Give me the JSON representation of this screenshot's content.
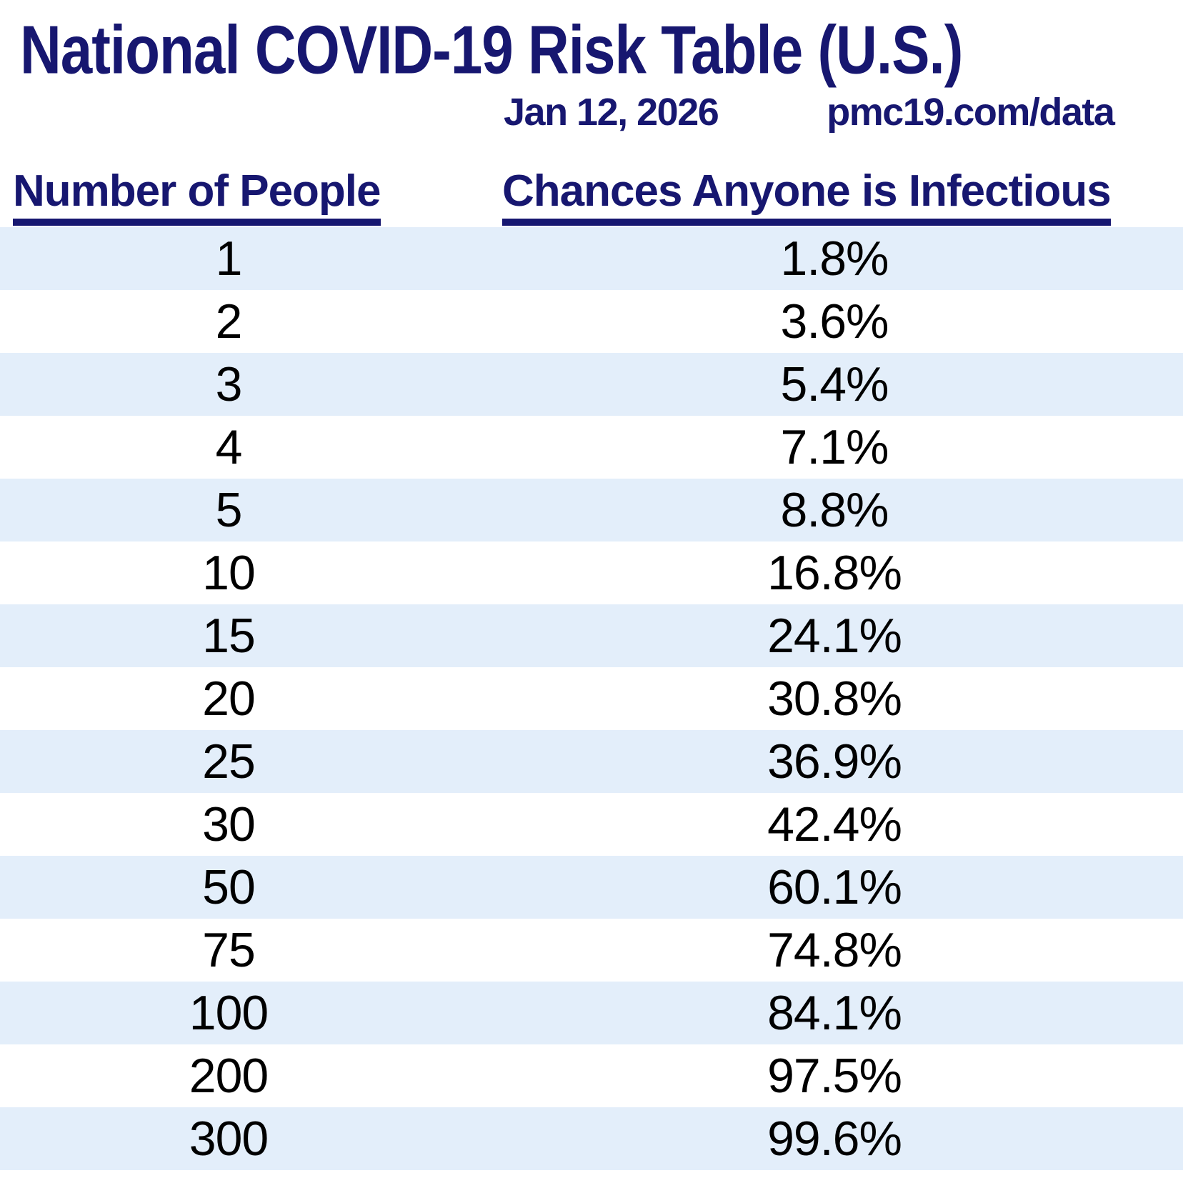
{
  "title": "National COVID-19 Risk Table (U.S.)",
  "date": "Jan 12, 2026",
  "source": "pmc19.com/data",
  "colors": {
    "navy": "#171770",
    "row_alternate": "#e3eefa",
    "row_text": "#000000",
    "background": "#ffffff"
  },
  "table": {
    "columns": [
      "Number of People",
      "Chances Anyone is Infectious"
    ],
    "rows": [
      [
        "1",
        "1.8%"
      ],
      [
        "2",
        "3.6%"
      ],
      [
        "3",
        "5.4%"
      ],
      [
        "4",
        "7.1%"
      ],
      [
        "5",
        "8.8%"
      ],
      [
        "10",
        "16.8%"
      ],
      [
        "15",
        "24.1%"
      ],
      [
        "20",
        "30.8%"
      ],
      [
        "25",
        "36.9%"
      ],
      [
        "30",
        "42.4%"
      ],
      [
        "50",
        "60.1%"
      ],
      [
        "75",
        "74.8%"
      ],
      [
        "100",
        "84.1%"
      ],
      [
        "200",
        "97.5%"
      ],
      [
        "300",
        "99.6%"
      ]
    ]
  },
  "chart_data": {
    "type": "table",
    "title": "National COVID-19 Risk Table (U.S.)",
    "subtitle": "Jan 12, 2026",
    "source": "pmc19.com/data",
    "columns": [
      "Number of People",
      "Chances Anyone is Infectious"
    ],
    "categories": [
      1,
      2,
      3,
      4,
      5,
      10,
      15,
      20,
      25,
      30,
      50,
      75,
      100,
      200,
      300
    ],
    "values_percent": [
      1.8,
      3.6,
      5.4,
      7.1,
      8.8,
      16.8,
      24.1,
      30.8,
      36.9,
      42.4,
      60.1,
      74.8,
      84.1,
      97.5,
      99.6
    ],
    "layout": {
      "striped_rows": true,
      "stripe_color": "#e3eefa",
      "header_underline": true
    }
  }
}
